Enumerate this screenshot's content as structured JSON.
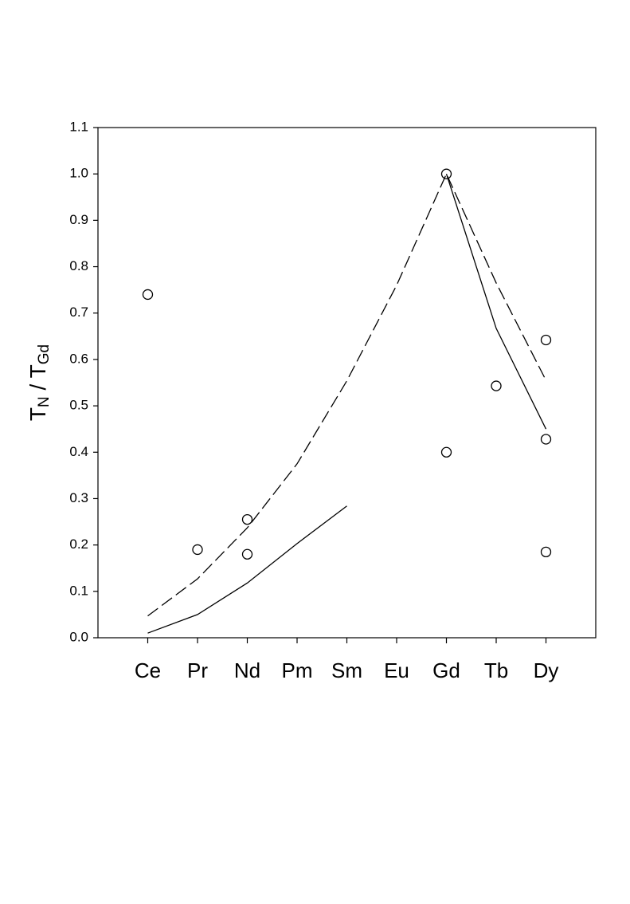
{
  "chart_data": {
    "type": "line",
    "ylabel": [
      "T",
      "N",
      " / T",
      "Gd"
    ],
    "categories": [
      "Ce",
      "Pr",
      "Nd",
      "Pm",
      "Sm",
      "Eu",
      "Gd",
      "Tb",
      "Dy"
    ],
    "ylim": [
      0,
      1.1
    ],
    "yticks": [
      {
        "value": 0,
        "label": "0.0"
      },
      0.1,
      0.2,
      0.3,
      0.4,
      0.5,
      0.6,
      0.7,
      0.8,
      0.9,
      {
        "value": 1,
        "label": "1.0"
      },
      1.1
    ],
    "series": [
      {
        "color": "#000000",
        "dash": false,
        "values": [
          0.01,
          0.05,
          0.118,
          0.203,
          0.284,
          null,
          1.0,
          0.667,
          0.45
        ]
      },
      {
        "color": "#000000",
        "dash": true,
        "values": [
          0.047,
          0.127,
          0.237,
          0.375,
          0.554,
          0.76,
          1.0,
          0.765,
          0.555
        ]
      }
    ],
    "points": {
      "color": "#000000",
      "x": [
        "Ce",
        "Pr",
        "Nd",
        "Nd",
        "Gd",
        "Gd",
        "Tb",
        "Dy",
        "Dy",
        "Dy"
      ],
      "values": [
        0.74,
        0.19,
        0.255,
        0.18,
        1.0,
        0.4,
        0.543,
        0.642,
        0.428,
        0.185
      ]
    }
  }
}
